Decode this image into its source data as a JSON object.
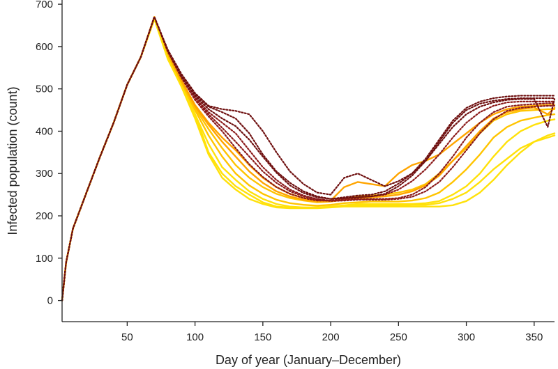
{
  "chart_data": {
    "type": "line",
    "title": "",
    "xlabel": "Day of year (January–December)",
    "ylabel": "Infected population (count)",
    "xlim": [
      2,
      365
    ],
    "ylim": [
      -50,
      710
    ],
    "xticks": [
      50,
      100,
      150,
      200,
      250,
      300,
      350
    ],
    "yticks": [
      0,
      100,
      200,
      300,
      400,
      500,
      600,
      700
    ],
    "grid": false,
    "colors": {
      "solid_series": [
        "#FFE10A",
        "#FFC400",
        "#FFA500"
      ],
      "dotted_series": [
        "#8B1A1A",
        "#6E0F0F"
      ]
    },
    "x": [
      2,
      5,
      10,
      20,
      30,
      40,
      50,
      60,
      70,
      80,
      90,
      100,
      110,
      120,
      130,
      140,
      150,
      160,
      170,
      180,
      190,
      200,
      210,
      220,
      230,
      240,
      250,
      260,
      270,
      280,
      290,
      300,
      310,
      320,
      330,
      340,
      350,
      360,
      365
    ],
    "series": [
      {
        "style": "solid",
        "color": "#FFE10A",
        "values": [
          0,
          90,
          170,
          255,
          340,
          420,
          510,
          575,
          665,
          570,
          510,
          440,
          350,
          300,
          270,
          250,
          232,
          222,
          220,
          220,
          220,
          222,
          224,
          225,
          225,
          225,
          225,
          226,
          226,
          230,
          240,
          255,
          280,
          310,
          335,
          360,
          375,
          385,
          390
        ]
      },
      {
        "style": "solid",
        "color": "#FFE10A",
        "values": [
          0,
          90,
          170,
          255,
          340,
          420,
          510,
          575,
          665,
          575,
          510,
          440,
          370,
          315,
          285,
          258,
          240,
          228,
          222,
          220,
          220,
          222,
          225,
          228,
          228,
          228,
          228,
          228,
          230,
          235,
          250,
          270,
          300,
          340,
          375,
          400,
          415,
          425,
          428
        ]
      },
      {
        "style": "solid",
        "color": "#FFC400",
        "values": [
          0,
          90,
          170,
          255,
          340,
          420,
          510,
          575,
          665,
          580,
          515,
          450,
          390,
          340,
          300,
          272,
          252,
          238,
          230,
          226,
          224,
          226,
          230,
          232,
          234,
          234,
          234,
          236,
          242,
          255,
          280,
          310,
          345,
          385,
          410,
          425,
          432,
          438,
          440
        ]
      },
      {
        "style": "solid",
        "color": "#FFC400",
        "values": [
          0,
          90,
          170,
          255,
          340,
          420,
          510,
          575,
          665,
          580,
          515,
          455,
          405,
          360,
          320,
          290,
          268,
          252,
          242,
          236,
          232,
          234,
          240,
          246,
          248,
          250,
          255,
          262,
          275,
          300,
          330,
          360,
          395,
          425,
          440,
          448,
          450,
          452,
          452
        ]
      },
      {
        "style": "solid",
        "color": "#FFA500",
        "values": [
          0,
          90,
          170,
          255,
          340,
          420,
          510,
          575,
          670,
          585,
          520,
          462,
          420,
          385,
          355,
          320,
          290,
          268,
          252,
          242,
          236,
          236,
          268,
          280,
          275,
          270,
          300,
          320,
          330,
          345,
          370,
          395,
          420,
          440,
          452,
          458,
          460,
          462,
          462
        ]
      },
      {
        "style": "solid",
        "color": "#FFA500",
        "values": [
          0,
          90,
          170,
          255,
          340,
          420,
          510,
          575,
          670,
          585,
          520,
          460,
          415,
          375,
          340,
          305,
          278,
          258,
          246,
          238,
          234,
          234,
          238,
          242,
          244,
          246,
          250,
          258,
          272,
          295,
          330,
          365,
          400,
          430,
          445,
          452,
          456,
          440,
          455
        ]
      },
      {
        "style": "solid",
        "color": "#FFE10A",
        "values": [
          0,
          90,
          170,
          255,
          340,
          420,
          510,
          575,
          665,
          570,
          505,
          430,
          345,
          290,
          262,
          240,
          228,
          220,
          218,
          218,
          218,
          220,
          222,
          222,
          222,
          222,
          222,
          222,
          222,
          222,
          225,
          235,
          255,
          285,
          320,
          350,
          375,
          390,
          395
        ]
      },
      {
        "style": "dotted",
        "color": "#8B1A1A",
        "values": [
          0,
          90,
          170,
          255,
          340,
          420,
          510,
          575,
          670,
          590,
          530,
          480,
          445,
          420,
          395,
          355,
          315,
          285,
          262,
          248,
          240,
          236,
          240,
          244,
          246,
          250,
          262,
          282,
          310,
          345,
          385,
          420,
          445,
          460,
          468,
          470,
          470,
          470,
          470
        ]
      },
      {
        "style": "dotted",
        "color": "#6E0F0F",
        "values": [
          0,
          90,
          170,
          255,
          340,
          420,
          510,
          575,
          670,
          590,
          532,
          488,
          458,
          445,
          430,
          395,
          345,
          305,
          278,
          258,
          246,
          240,
          242,
          244,
          246,
          252,
          270,
          295,
          330,
          375,
          420,
          450,
          465,
          472,
          476,
          478,
          478,
          478,
          478
        ]
      },
      {
        "style": "dotted",
        "color": "#8B1A1A",
        "values": [
          0,
          90,
          170,
          255,
          340,
          420,
          510,
          575,
          670,
          588,
          526,
          474,
          435,
          400,
          360,
          322,
          292,
          268,
          252,
          242,
          236,
          236,
          238,
          240,
          240,
          240,
          242,
          250,
          268,
          300,
          340,
          385,
          420,
          445,
          458,
          462,
          464,
          466,
          466
        ]
      },
      {
        "style": "dotted",
        "color": "#6E0F0F",
        "values": [
          0,
          90,
          170,
          255,
          340,
          420,
          510,
          575,
          670,
          592,
          535,
          490,
          460,
          452,
          448,
          440,
          400,
          350,
          305,
          275,
          255,
          250,
          290,
          300,
          285,
          270,
          282,
          300,
          330,
          370,
          410,
          440,
          458,
          468,
          474,
          476,
          476,
          410,
          476
        ]
      },
      {
        "style": "dotted",
        "color": "#8B1A1A",
        "values": [
          0,
          90,
          170,
          255,
          340,
          420,
          510,
          575,
          670,
          588,
          528,
          478,
          440,
          408,
          375,
          340,
          305,
          278,
          258,
          246,
          238,
          235,
          236,
          238,
          238,
          238,
          240,
          245,
          258,
          280,
          315,
          355,
          395,
          428,
          448,
          455,
          458,
          460,
          460
        ]
      },
      {
        "style": "dotted",
        "color": "#6E0F0F",
        "values": [
          0,
          90,
          170,
          255,
          340,
          420,
          510,
          575,
          670,
          590,
          530,
          484,
          452,
          430,
          412,
          380,
          340,
          302,
          272,
          254,
          244,
          240,
          244,
          248,
          250,
          258,
          276,
          300,
          335,
          380,
          425,
          455,
          470,
          478,
          482,
          484,
          484,
          484,
          484
        ]
      }
    ]
  }
}
